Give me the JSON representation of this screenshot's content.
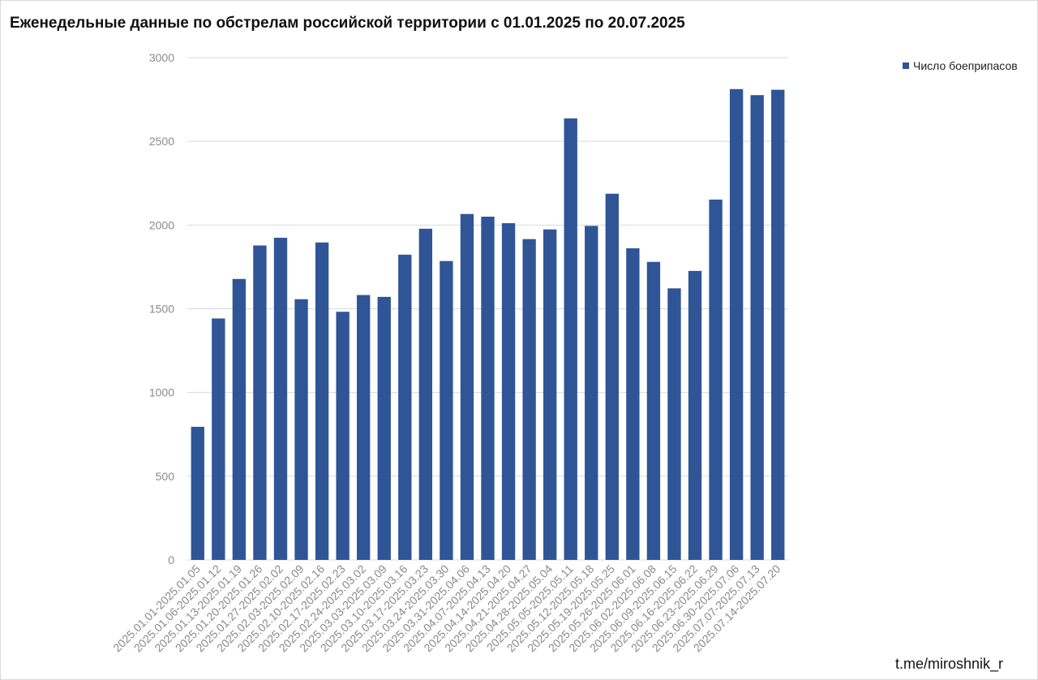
{
  "colors": {
    "bar": "#2f5597",
    "grid": "#d9d9d9",
    "axis_text": "#8a8a8a"
  },
  "watermark": "t.me/miroshnik_r",
  "chart_data": {
    "type": "bar",
    "title": "Еженедельные данные по обстрелам российской территории с 01.01.2025 по 20.07.2025",
    "xlabel": "",
    "ylabel": "",
    "ylim": [
      0,
      3000
    ],
    "yticks": [
      0,
      500,
      1000,
      1500,
      2000,
      2500,
      3000
    ],
    "grid": true,
    "legend_position": "top-right",
    "categories": [
      "2025.01.01-2025.01.05",
      "2025.01.06-2025.01.12",
      "2025.01.13-2025.01.19",
      "2025.01.20-2025.01.26",
      "2025.01.27-2025.02.02",
      "2025.02.03-2025.02.09",
      "2025.02.10-2025.02.16",
      "2025.02.17-2025.02.23",
      "2025.02.24-2025.03.02",
      "2025.03.03-2025.03.09",
      "2025.03.10-2025.03.16",
      "2025.03.17-2025.03.23",
      "2025.03.24-2025.03.30",
      "2025.03.31-2025.04.06",
      "2025.04.07-2025.04.13",
      "2025.04.14-2025.04.20",
      "2025.04.21-2025.04.27",
      "2025.04.28-2025.05.04",
      "2025.05.05-2025.05.11",
      "2025.05.12-2025.05.18",
      "2025.05.19-2025.05.25",
      "2025.05.26-2025.06.01",
      "2025.06.02-2025.06.08",
      "2025.06.09-2025.06.15",
      "2025.06.16-2025.06.22",
      "2025.06.23-2025.06.29",
      "2025.06.30-2025.07.06",
      "2025.07.07-2025.07.13",
      "2025.07.14-2025.07.20"
    ],
    "series": [
      {
        "name": "Число боеприпасов",
        "values": [
          795,
          1442,
          1678,
          1878,
          1924,
          1557,
          1896,
          1482,
          1582,
          1571,
          1823,
          1978,
          1785,
          2066,
          2050,
          2011,
          1916,
          1974,
          2637,
          1995,
          2187,
          1861,
          1780,
          1622,
          1726,
          2152,
          2812,
          2776,
          2808
        ]
      }
    ]
  }
}
